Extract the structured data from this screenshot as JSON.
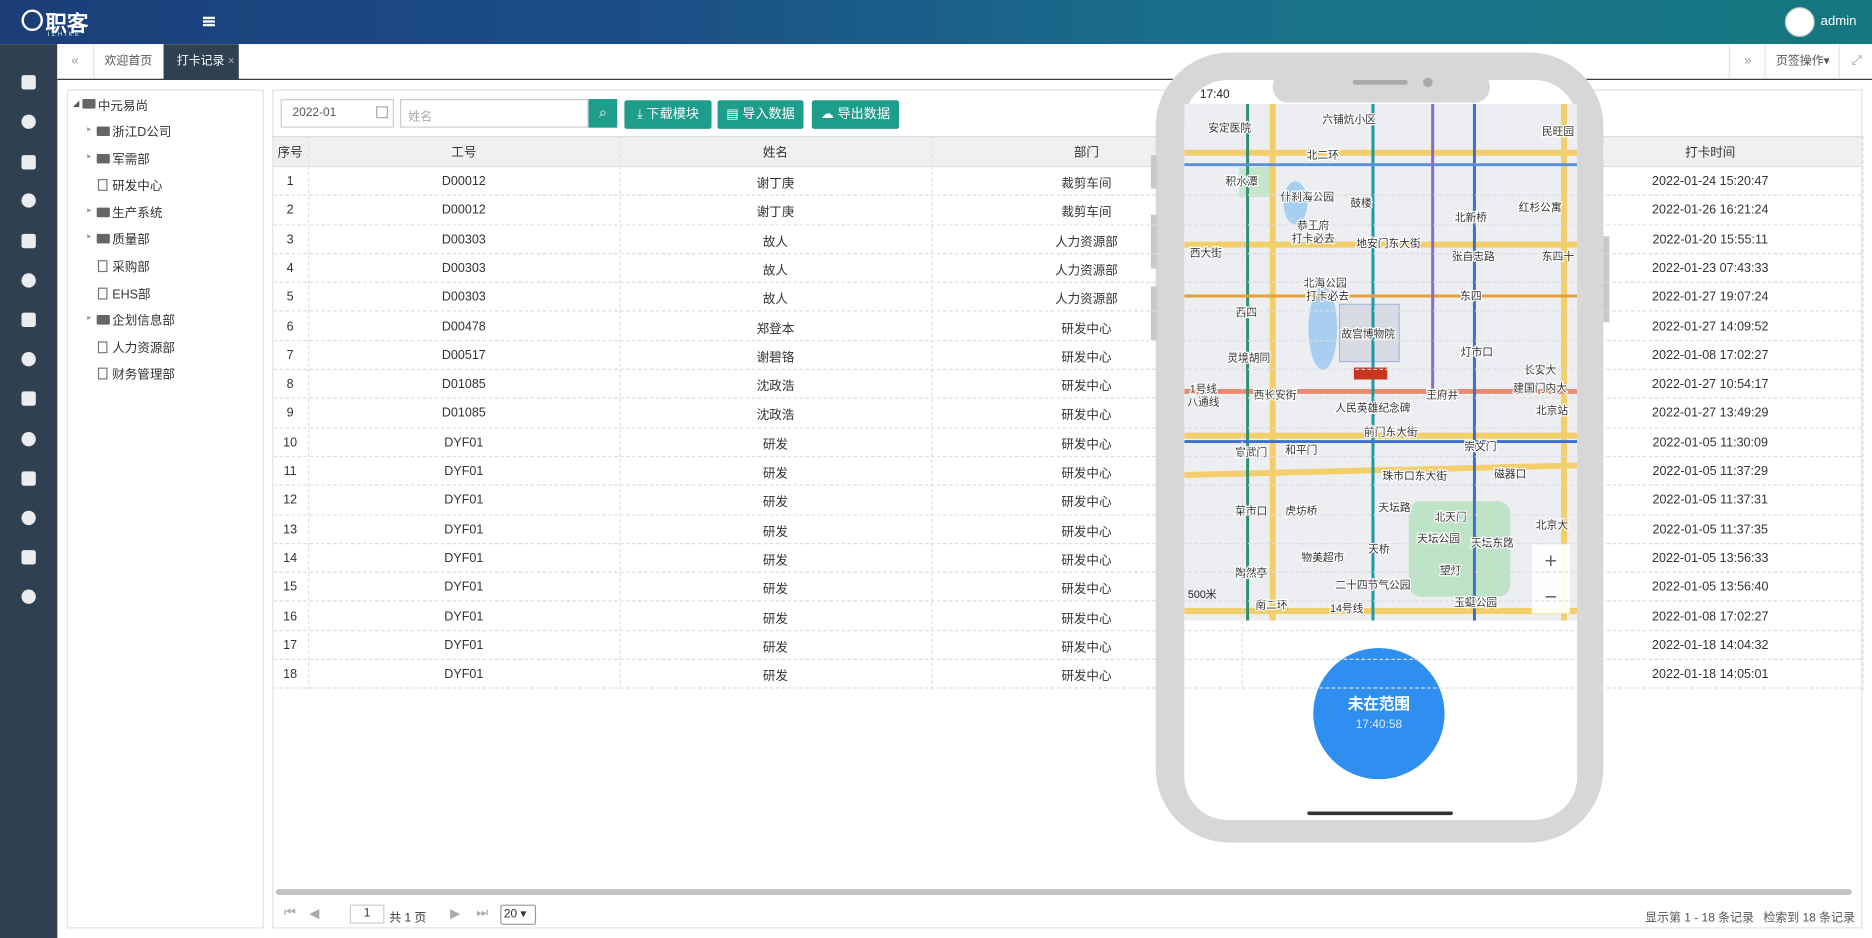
{
  "header": {
    "logo": "职客",
    "logo_sub": "IZHIKE",
    "user": "admin"
  },
  "tabs": {
    "items": [
      "欢迎首页",
      "打卡记录"
    ],
    "close": "×",
    "menu": "页签操作"
  },
  "tree": {
    "root": "中元易尚",
    "nodes": [
      {
        "label": "浙江D公司",
        "kind": "folder"
      },
      {
        "label": "军需部",
        "kind": "folder"
      },
      {
        "label": "研发中心",
        "kind": "file"
      },
      {
        "label": "生产系统",
        "kind": "folder"
      },
      {
        "label": "质量部",
        "kind": "folder"
      },
      {
        "label": "采购部",
        "kind": "file"
      },
      {
        "label": "EHS部",
        "kind": "file"
      },
      {
        "label": "企划信息部",
        "kind": "folder"
      },
      {
        "label": "人力资源部",
        "kind": "file"
      },
      {
        "label": "财务管理部",
        "kind": "file"
      }
    ]
  },
  "toolbar": {
    "month": "2022-01",
    "name_placeholder": "姓名",
    "buttons": [
      "下载模块",
      "导入数据",
      "导出数据"
    ]
  },
  "table": {
    "columns": [
      "序号",
      "工号",
      "姓名",
      "部门",
      "打卡时间"
    ],
    "rows": [
      [
        1,
        "D00012",
        "谢丁庚",
        "裁剪车间",
        "2022-01-24 15:20:47"
      ],
      [
        2,
        "D00012",
        "谢丁庚",
        "裁剪车间",
        "2022-01-26 16:21:24"
      ],
      [
        3,
        "D00303",
        "故人",
        "人力资源部",
        "2022-01-20 15:55:11"
      ],
      [
        4,
        "D00303",
        "故人",
        "人力资源部",
        "2022-01-23 07:43:33"
      ],
      [
        5,
        "D00303",
        "故人",
        "人力资源部",
        "2022-01-27 19:07:24"
      ],
      [
        6,
        "D00478",
        "郑登本",
        "研发中心",
        "2022-01-27 14:09:52"
      ],
      [
        7,
        "D00517",
        "谢碧铬",
        "研发中心",
        "2022-01-08 17:02:27"
      ],
      [
        8,
        "D01085",
        "沈政浩",
        "研发中心",
        "2022-01-27 10:54:17"
      ],
      [
        9,
        "D01085",
        "沈政浩",
        "研发中心",
        "2022-01-27 13:49:29"
      ],
      [
        10,
        "DYF01",
        "研发",
        "研发中心",
        "2022-01-05 11:30:09"
      ],
      [
        11,
        "DYF01",
        "研发",
        "研发中心",
        "2022-01-05 11:37:29"
      ],
      [
        12,
        "DYF01",
        "研发",
        "研发中心",
        "2022-01-05 11:37:31"
      ],
      [
        13,
        "DYF01",
        "研发",
        "研发中心",
        "2022-01-05 11:37:35"
      ],
      [
        14,
        "DYF01",
        "研发",
        "研发中心",
        "2022-01-05 13:56:33"
      ],
      [
        15,
        "DYF01",
        "研发",
        "研发中心",
        "2022-01-05 13:56:40"
      ],
      [
        16,
        "DYF01",
        "研发",
        "研发中心",
        "2022-01-08 17:02:27"
      ],
      [
        17,
        "DYF01",
        "研发",
        "研发中心",
        "2022-01-18 14:04:32"
      ],
      [
        18,
        "DYF01",
        "研发",
        "研发中心",
        "2022-01-18 14:05:01"
      ]
    ]
  },
  "pager": {
    "page": "1",
    "pages_text": "共 1 页",
    "size": "20",
    "display": "显示第 1 - 18 条记录",
    "found": "检索到 18 条记录"
  },
  "phone": {
    "time": "17:40",
    "status": "未在范围",
    "clock": "17:40:58",
    "scale": "500米",
    "map_labels": [
      "安定医院",
      "六铺炕小区",
      "民旺园",
      "北二环",
      "积水潭",
      "什刹海公园",
      "鼓楼",
      "北新桥",
      "红杉公寓",
      "恭王府",
      "打卡必去",
      "地安门东大街",
      "张自忠路",
      "东四十",
      "西大街",
      "北海公园",
      "打卡必去",
      "东四",
      "西四",
      "故宫博物院",
      "灯市口",
      "灵境胡同",
      "长安大",
      "西长安街",
      "王府井",
      "建国门内大",
      "北京站",
      "人民英雄纪念碑",
      "前门东大街",
      "宣武门",
      "和平门",
      "崇文门",
      "珠市口东大街",
      "磁器口",
      "菜市口",
      "虎坊桥",
      "天坛路",
      "北天门",
      "天坛公园",
      "天坛东路",
      "北京大",
      "物美超市",
      "天桥",
      "陶然亭",
      "望灯",
      "二十四节气公园",
      "南二环",
      "14号线",
      "玉蜓公园",
      "1号线",
      "八通线"
    ]
  }
}
